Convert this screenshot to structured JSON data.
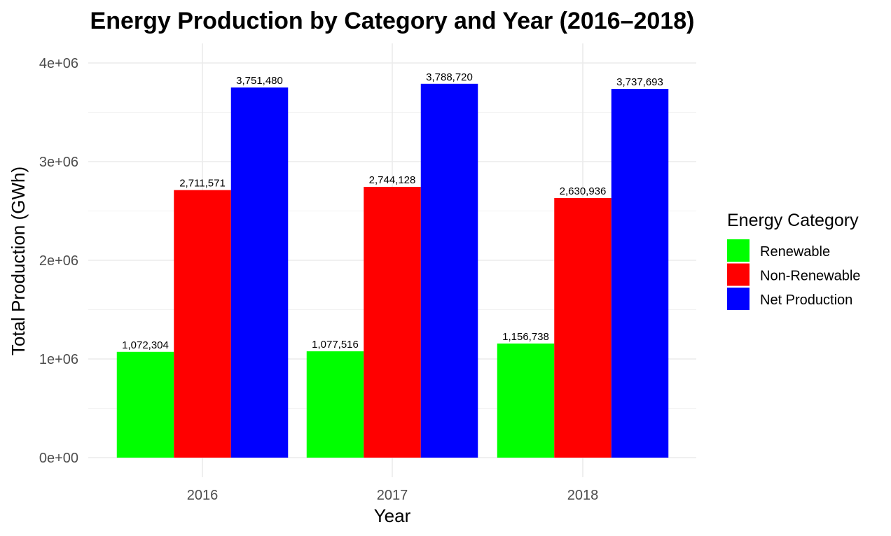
{
  "chart_data": {
    "type": "bar",
    "title": "Energy Production by Category and Year (2016–2018)",
    "xlabel": "Year",
    "ylabel": "Total Production (GWh)",
    "categories": [
      "2016",
      "2017",
      "2018"
    ],
    "series": [
      {
        "name": "Renewable",
        "color": "#00ff00",
        "values": [
          1072304,
          1077516,
          1156738
        ],
        "labels": [
          "1,072,304",
          "1,077,516",
          "1,156,738"
        ]
      },
      {
        "name": "Non-Renewable",
        "color": "#ff0000",
        "values": [
          2711571,
          2744128,
          2630936
        ],
        "labels": [
          "2,711,571",
          "2,744,128",
          "2,630,936"
        ]
      },
      {
        "name": "Net Production",
        "color": "#0000ff",
        "values": [
          3751480,
          3788720,
          3737693
        ],
        "labels": [
          "3,751,480",
          "3,788,720",
          "3,737,693"
        ]
      }
    ],
    "ylim": [
      0,
      4000000
    ],
    "y_ticks": [
      0,
      1000000,
      2000000,
      3000000,
      4000000
    ],
    "y_tick_labels": [
      "0e+00",
      "1e+06",
      "2e+06",
      "3e+06",
      "4e+06"
    ],
    "grid": true,
    "legend": {
      "title": "Energy Category",
      "placement": "right"
    }
  }
}
